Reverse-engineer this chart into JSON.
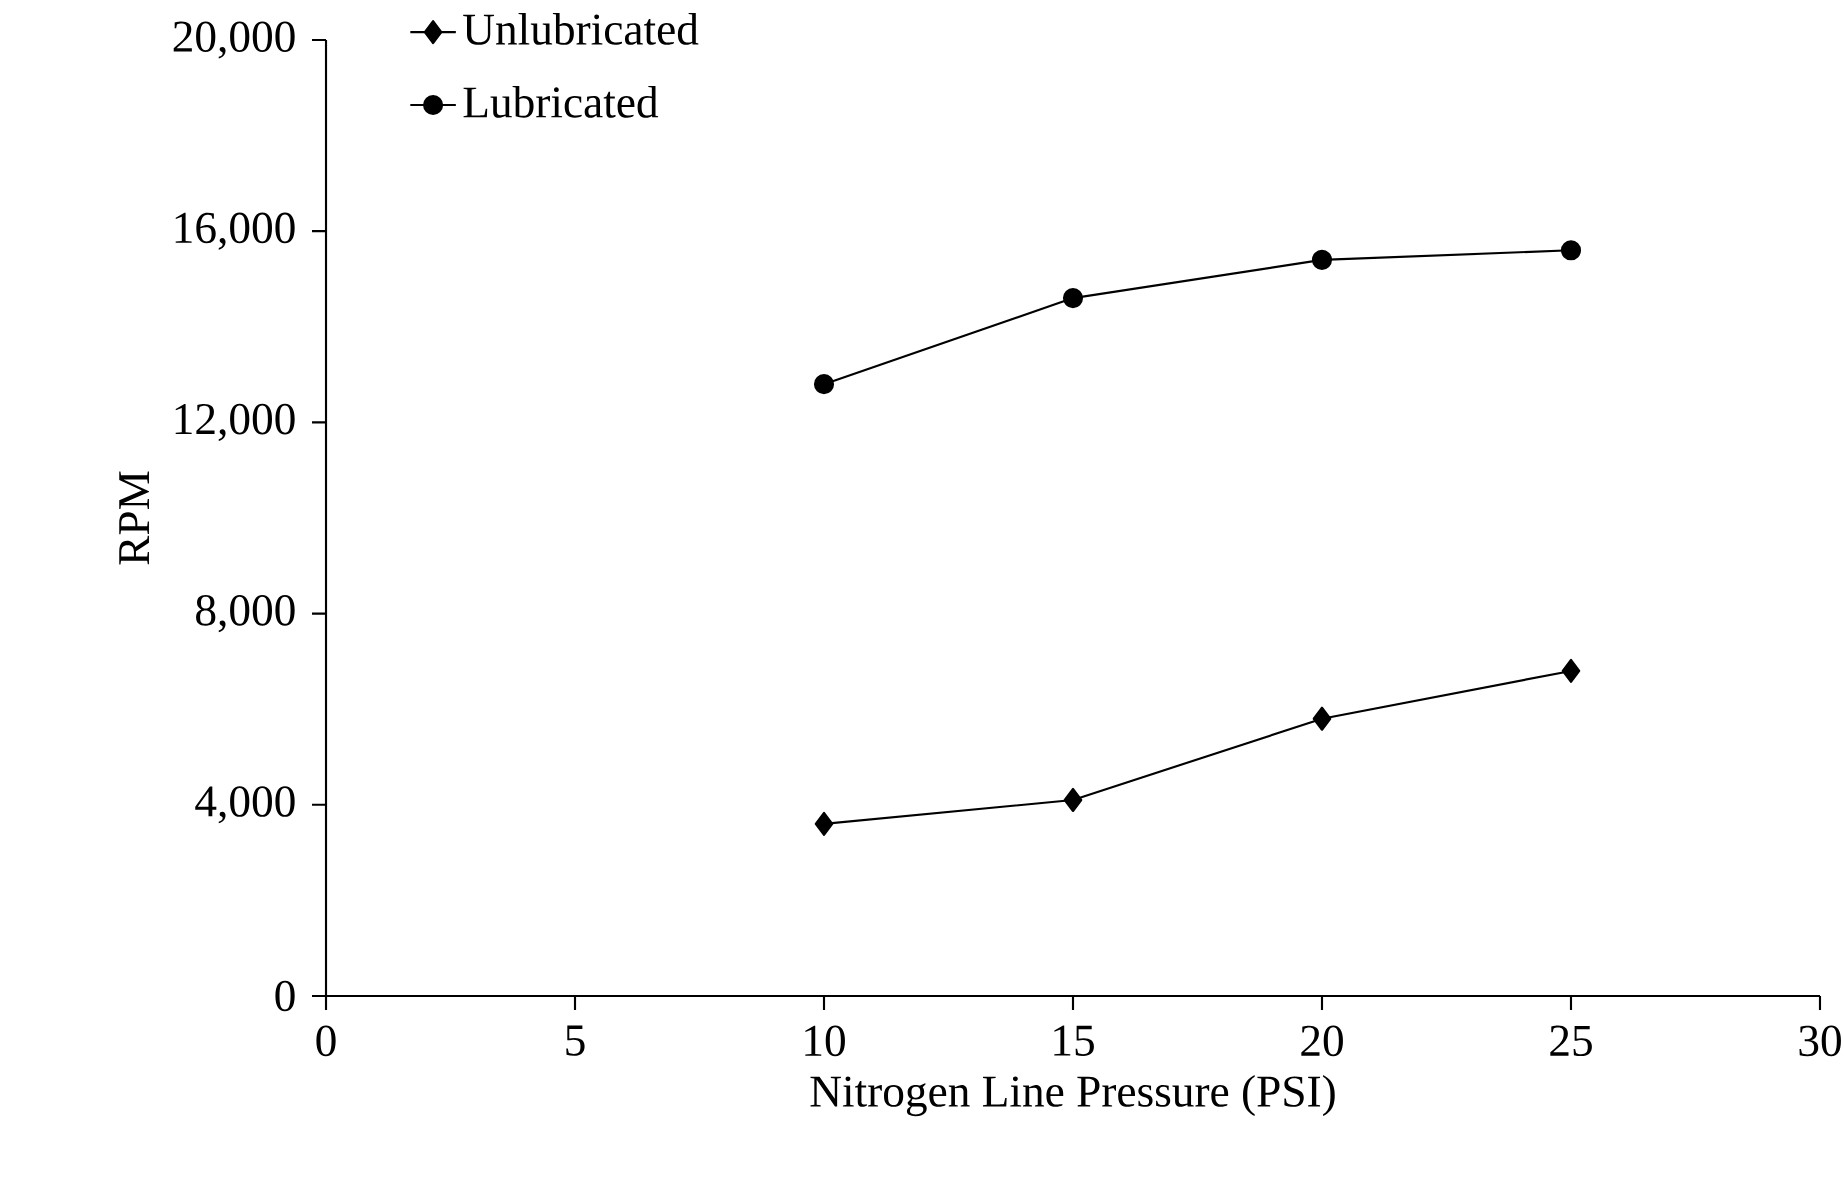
{
  "chart_data": {
    "type": "line",
    "xlabel": "Nitrogen Line Pressure (PSI)",
    "ylabel": "RPM",
    "x": [
      10,
      15,
      20,
      25
    ],
    "series": [
      {
        "name": "Unlubricated",
        "color": "#000000",
        "marker": "diamond",
        "values": [
          3600,
          4100,
          5800,
          6800
        ]
      },
      {
        "name": "Lubricated",
        "color": "#000000",
        "marker": "circle",
        "values": [
          12800,
          14600,
          15400,
          15600
        ]
      }
    ],
    "xlim": [
      0,
      30
    ],
    "xticks": [
      0,
      5,
      10,
      15,
      20,
      25,
      30
    ],
    "ylim": [
      0,
      20000
    ],
    "yticks": [
      0,
      {
        "value": 4000,
        "label": "4,000"
      },
      {
        "value": 8000,
        "label": "8,000"
      },
      {
        "value": 12000,
        "label": "12,000"
      },
      {
        "value": 16000,
        "label": "16,000"
      },
      {
        "value": 20000,
        "label": "20,000"
      }
    ],
    "grid": false,
    "legend": "top left",
    "line_style": "solid"
  }
}
